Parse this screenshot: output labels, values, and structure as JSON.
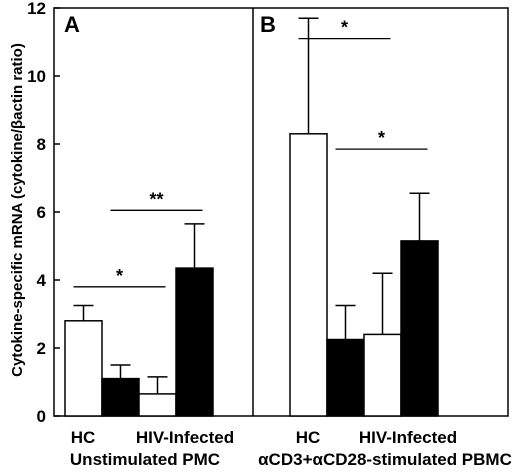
{
  "chart_data": {
    "type": "bar",
    "ylabel": "Cytokine-specific mRNA (cytokine/βactin ratio)",
    "ylim": [
      0,
      12
    ],
    "yticks": [
      0,
      2,
      4,
      6,
      8,
      10,
      12
    ],
    "panels": [
      {
        "label": "A",
        "xlabel": "Unstimulated PMC",
        "groups": [
          "HC",
          "HIV-Infected"
        ],
        "bars": [
          {
            "group": "HC",
            "fill": "open",
            "value": 2.8,
            "error": 0.45
          },
          {
            "group": "HC",
            "fill": "solid",
            "value": 1.1,
            "error": 0.4
          },
          {
            "group": "HIV-Infected",
            "fill": "open",
            "value": 0.65,
            "error": 0.5
          },
          {
            "group": "HIV-Infected",
            "fill": "solid",
            "value": 4.35,
            "error": 1.3
          }
        ],
        "significance": [
          {
            "label": "*",
            "y": 3.8,
            "from_bar": 0,
            "to_bar": 2
          },
          {
            "label": "**",
            "y": 6.05,
            "from_bar": 1,
            "to_bar": 3
          }
        ]
      },
      {
        "label": "B",
        "xlabel": "αCD3+αCD28-stimulated PBMC",
        "groups": [
          "HC",
          "HIV-Infected"
        ],
        "bars": [
          {
            "group": "HC",
            "fill": "open",
            "value": 8.3,
            "error": 3.4
          },
          {
            "group": "HC",
            "fill": "solid",
            "value": 2.25,
            "error": 1.0
          },
          {
            "group": "HIV-Infected",
            "fill": "open",
            "value": 2.4,
            "error": 1.8
          },
          {
            "group": "HIV-Infected",
            "fill": "solid",
            "value": 5.15,
            "error": 1.4
          }
        ],
        "significance": [
          {
            "label": "*",
            "y": 11.1,
            "from_bar": 0,
            "to_bar": 2
          },
          {
            "label": "*",
            "y": 7.85,
            "from_bar": 1,
            "to_bar": 3
          }
        ]
      }
    ]
  },
  "colors": {
    "open": "#ffffff",
    "solid": "#000000",
    "stroke": "#000000"
  }
}
